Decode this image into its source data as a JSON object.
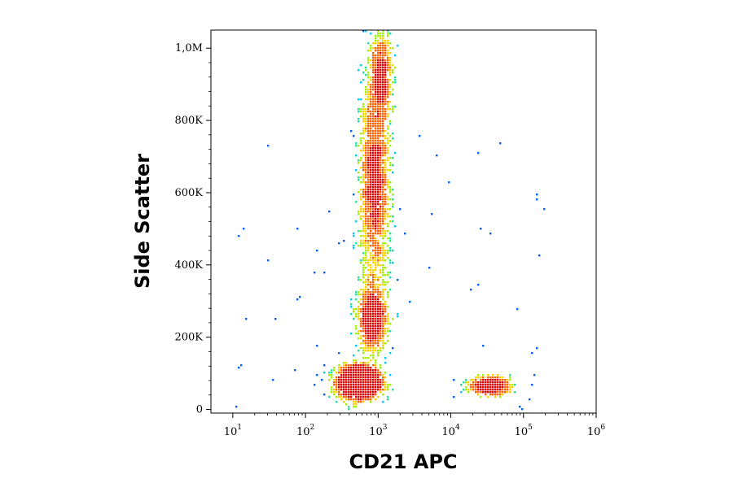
{
  "chart_data": {
    "type": "scatter",
    "title": "",
    "xlabel": "CD21 APC",
    "ylabel": "Side Scatter",
    "x_scale": "log",
    "xlim": [
      5,
      1000000
    ],
    "ylim": [
      -10000,
      1050000
    ],
    "grid": false,
    "legend": "none",
    "x_ticks": [
      {
        "value": 10,
        "base": "10",
        "exp": "1"
      },
      {
        "value": 100,
        "base": "10",
        "exp": "2"
      },
      {
        "value": 1000,
        "base": "10",
        "exp": "3"
      },
      {
        "value": 10000,
        "base": "10",
        "exp": "4"
      },
      {
        "value": 100000,
        "base": "10",
        "exp": "5"
      },
      {
        "value": 1000000,
        "base": "10",
        "exp": "6"
      }
    ],
    "y_ticks": [
      {
        "value": 0,
        "label": "0"
      },
      {
        "value": 200000,
        "label": "200K"
      },
      {
        "value": 400000,
        "label": "400K"
      },
      {
        "value": 600000,
        "label": "600K"
      },
      {
        "value": 800000,
        "label": "800K"
      },
      {
        "value": 1000000,
        "label": "1,0M"
      }
    ],
    "density_colormap": [
      "#0000cc",
      "#0060ff",
      "#00c8ff",
      "#20e0a0",
      "#a0f000",
      "#ffd000",
      "#ff6000",
      "#e00000"
    ],
    "populations": [
      {
        "x_center": 550,
        "y_center": 75000,
        "x_spread_decades": 0.14,
        "y_spread": 22000,
        "weight": 1.0
      },
      {
        "x_center": 900,
        "y_center": 620000,
        "x_spread_decades": 0.1,
        "y_spread": 150000,
        "weight": 0.85
      },
      {
        "x_center": 850,
        "y_center": 250000,
        "x_spread_decades": 0.1,
        "y_spread": 45000,
        "weight": 0.4
      },
      {
        "x_center": 1100,
        "y_center": 920000,
        "x_spread_decades": 0.07,
        "y_spread": 70000,
        "weight": 0.3
      },
      {
        "x_center": 35000,
        "y_center": 65000,
        "x_spread_decades": 0.14,
        "y_spread": 12000,
        "weight": 0.2
      }
    ]
  }
}
